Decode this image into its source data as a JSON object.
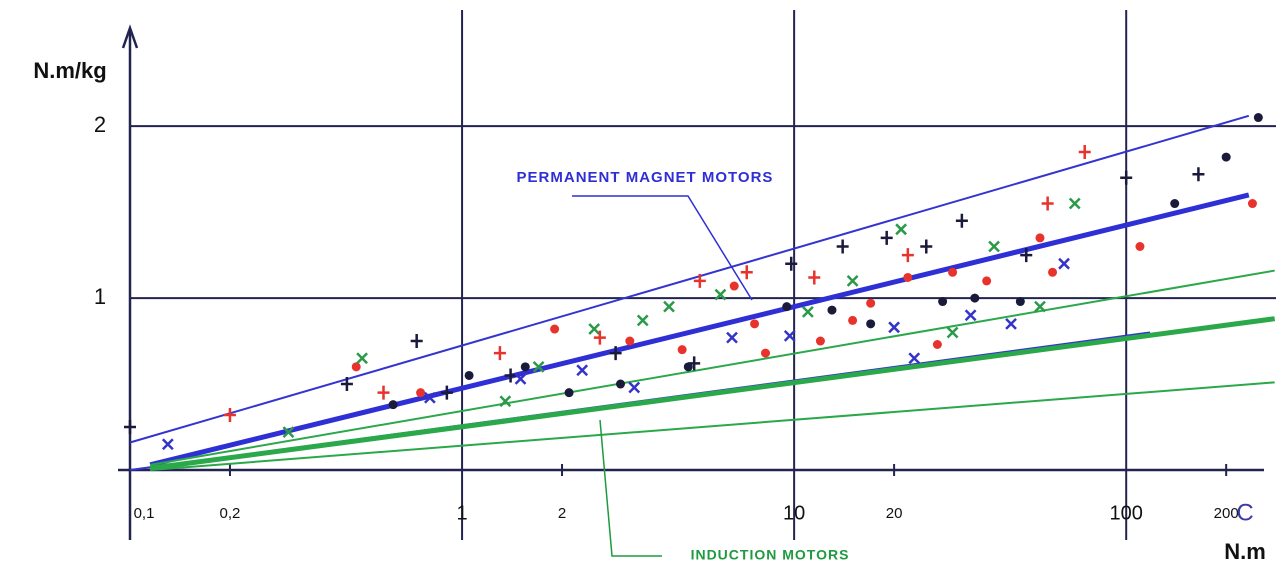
{
  "chart_data": {
    "type": "scatter",
    "y_label": "N.m/kg",
    "x_label": "N.m",
    "x_log": true,
    "xlim": [
      0.1,
      260
    ],
    "ylim": [
      0,
      2.6
    ],
    "xticks": [
      {
        "value": 0.1,
        "label": "0,1"
      },
      {
        "value": 0.2,
        "label": "0,2"
      },
      1,
      {
        "value": 2,
        "label": "2"
      },
      10,
      {
        "value": 20,
        "label": "20"
      },
      100,
      {
        "value": 200,
        "label": "200"
      }
    ],
    "yticks": [
      1,
      2
    ],
    "grid": true,
    "annotations": [
      {
        "text": "PERMANENT MAGNET MOTORS",
        "color": "#2f2fd6"
      },
      {
        "text": "INDUCTION MOTORS",
        "color": "#1f9a40"
      },
      {
        "text": "C",
        "color": "#3a3aa0"
      }
    ],
    "bands": [
      {
        "color": "#3434d0",
        "width": 2,
        "x": [
          0.1,
          234
        ],
        "y": [
          0.16,
          2.06
        ]
      },
      {
        "color": "#2f2fd6",
        "width": 5,
        "x": [
          0.115,
          234
        ],
        "y": [
          0.03,
          1.6
        ]
      },
      {
        "color": "#3434d0",
        "width": 2,
        "x": [
          0.1,
          118
        ],
        "y": [
          0.0,
          0.8
        ]
      },
      {
        "color": "#2aa84a",
        "width": 2,
        "x": [
          0.115,
          280
        ],
        "y": [
          0.03,
          1.16
        ]
      },
      {
        "color": "#2aa84a",
        "width": 5,
        "x": [
          0.115,
          280
        ],
        "y": [
          0.01,
          0.88
        ]
      },
      {
        "color": "#2aa84a",
        "width": 2,
        "x": [
          0.115,
          280
        ],
        "y": [
          0.0,
          0.51
        ]
      }
    ],
    "series": [
      {
        "marker": "dot",
        "color": "#e8322c",
        "x": [
          0.48,
          0.75,
          1.9,
          3.2,
          4.6,
          6.6,
          7.6,
          8.2,
          12,
          15,
          17,
          22,
          27,
          30,
          38,
          55,
          60,
          110,
          240
        ],
        "values": [
          0.6,
          0.45,
          0.82,
          0.75,
          0.7,
          1.07,
          0.85,
          0.68,
          0.75,
          0.87,
          0.97,
          1.12,
          0.73,
          1.15,
          1.1,
          1.35,
          1.15,
          1.3,
          1.55
        ]
      },
      {
        "marker": "dot",
        "color": "#1a1a3a",
        "x": [
          0.62,
          1.05,
          1.55,
          2.1,
          3.0,
          4.8,
          9.5,
          13,
          17,
          28,
          35,
          48,
          140,
          200,
          250
        ],
        "values": [
          0.38,
          0.55,
          0.6,
          0.45,
          0.5,
          0.6,
          0.95,
          0.93,
          0.85,
          0.98,
          1.0,
          0.98,
          1.55,
          1.82,
          2.05
        ]
      },
      {
        "marker": "plus",
        "color": "#1a1a3a",
        "x": [
          0.1,
          0.45,
          0.73,
          0.9,
          1.4,
          2.9,
          5,
          9.8,
          14,
          19,
          25,
          32,
          50,
          100,
          165
        ],
        "values": [
          0.25,
          0.5,
          0.75,
          0.45,
          0.55,
          0.68,
          0.62,
          1.2,
          1.3,
          1.35,
          1.3,
          1.45,
          1.25,
          1.7,
          1.72
        ]
      },
      {
        "marker": "x",
        "color": "#2a9a48",
        "x": [
          0.3,
          0.5,
          1.35,
          1.7,
          2.5,
          3.5,
          4.2,
          6,
          11,
          15,
          21,
          40,
          70,
          30,
          55
        ],
        "values": [
          0.22,
          0.65,
          0.4,
          0.6,
          0.82,
          0.87,
          0.95,
          1.02,
          0.92,
          1.1,
          1.4,
          1.3,
          1.55,
          0.8,
          0.95
        ]
      },
      {
        "marker": "plus",
        "color": "#e8322c",
        "x": [
          0.2,
          0.58,
          1.3,
          2.6,
          5.2,
          7.2,
          11.5,
          22,
          58,
          75
        ],
        "values": [
          0.32,
          0.45,
          0.68,
          0.77,
          1.1,
          1.15,
          1.12,
          1.25,
          1.55,
          1.85
        ]
      },
      {
        "marker": "x",
        "color": "#3434c8",
        "x": [
          0.13,
          0.8,
          1.5,
          2.3,
          3.3,
          6.5,
          9.7,
          20,
          34,
          45,
          65,
          23
        ],
        "values": [
          0.15,
          0.42,
          0.53,
          0.58,
          0.48,
          0.77,
          0.78,
          0.83,
          0.9,
          0.85,
          1.2,
          0.65
        ]
      }
    ]
  }
}
